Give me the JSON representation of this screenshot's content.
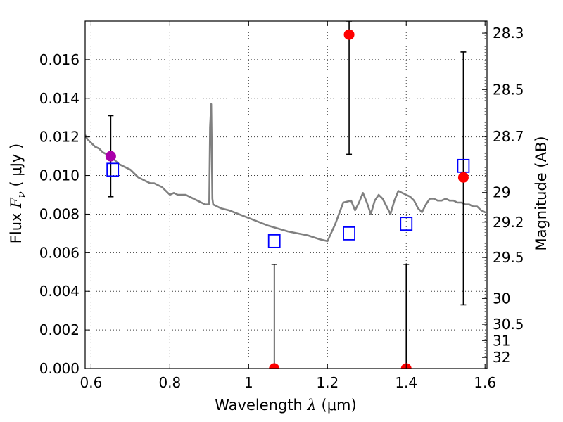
{
  "chart_data": {
    "type": "scatter",
    "x_axis": {
      "label_prefix": "Wavelength  ",
      "label_symbol": "λ",
      "label_unit": " (μm)",
      "range": [
        0.585,
        1.605
      ],
      "ticks": [
        0.6,
        0.8,
        1.0,
        1.2,
        1.4,
        1.6
      ],
      "tick_labels": [
        "0.6",
        "0.8",
        "1",
        "1.2",
        "1.4",
        "1.6"
      ]
    },
    "y_axis": {
      "label_prefix": "Flux  ",
      "label_symbol": "F",
      "label_subscript": "ν",
      "label_unit": "  ( μJy )",
      "range": [
        0.0,
        0.018
      ],
      "ticks": [
        0.0,
        0.002,
        0.004,
        0.006,
        0.008,
        0.01,
        0.012,
        0.014,
        0.016
      ],
      "tick_labels": [
        "0.000",
        "0.002",
        "0.004",
        "0.006",
        "0.008",
        "0.010",
        "0.012",
        "0.014",
        "0.016"
      ]
    },
    "y2_axis": {
      "label": "Magnitude (AB)",
      "ticks": [
        28.3,
        28.5,
        28.7,
        29,
        29.2,
        29.5,
        30,
        30.5,
        31,
        32
      ],
      "tick_labels": [
        "28.3",
        "28.5",
        "28.7",
        "29",
        "29.2",
        "29.5",
        "30",
        "30.5",
        "31",
        "32"
      ]
    },
    "grid": true,
    "series": [
      {
        "kind": "line",
        "color": "#808080",
        "x": [
          0.585,
          0.59,
          0.6,
          0.61,
          0.62,
          0.63,
          0.64,
          0.65,
          0.66,
          0.67,
          0.68,
          0.69,
          0.7,
          0.71,
          0.72,
          0.73,
          0.74,
          0.75,
          0.76,
          0.77,
          0.78,
          0.79,
          0.8,
          0.81,
          0.82,
          0.83,
          0.84,
          0.85,
          0.86,
          0.87,
          0.88,
          0.89,
          0.9,
          0.902,
          0.905,
          0.908,
          0.91,
          0.92,
          0.93,
          0.95,
          1.0,
          1.05,
          1.1,
          1.15,
          1.18,
          1.2,
          1.22,
          1.24,
          1.26,
          1.27,
          1.28,
          1.29,
          1.3,
          1.31,
          1.32,
          1.33,
          1.34,
          1.35,
          1.36,
          1.37,
          1.38,
          1.39,
          1.4,
          1.41,
          1.42,
          1.43,
          1.44,
          1.45,
          1.46,
          1.47,
          1.48,
          1.49,
          1.5,
          1.51,
          1.52,
          1.53,
          1.54,
          1.55,
          1.56,
          1.57,
          1.58,
          1.59,
          1.6
        ],
        "y": [
          0.0121,
          0.0119,
          0.0117,
          0.0115,
          0.0114,
          0.0112,
          0.0111,
          0.011,
          0.0108,
          0.0106,
          0.0105,
          0.0104,
          0.0103,
          0.0101,
          0.0099,
          0.0098,
          0.0097,
          0.0096,
          0.0096,
          0.0095,
          0.0094,
          0.0092,
          0.009,
          0.0091,
          0.009,
          0.009,
          0.009,
          0.0089,
          0.0088,
          0.0087,
          0.0086,
          0.0085,
          0.0085,
          0.0125,
          0.0137,
          0.0088,
          0.0085,
          0.0084,
          0.0083,
          0.0082,
          0.0078,
          0.0074,
          0.0071,
          0.0069,
          0.0067,
          0.0066,
          0.0075,
          0.0086,
          0.0087,
          0.0082,
          0.0086,
          0.0091,
          0.0086,
          0.008,
          0.0087,
          0.009,
          0.0088,
          0.0084,
          0.008,
          0.0087,
          0.0092,
          0.0091,
          0.009,
          0.0089,
          0.0087,
          0.0083,
          0.0081,
          0.0085,
          0.0088,
          0.0088,
          0.0087,
          0.0087,
          0.0088,
          0.0087,
          0.0087,
          0.0086,
          0.0086,
          0.0085,
          0.0085,
          0.0084,
          0.0084,
          0.0082,
          0.0081
        ]
      },
      {
        "kind": "squares",
        "color": "#0000ff",
        "x": [
          0.655,
          1.065,
          1.255,
          1.4,
          1.545
        ],
        "y": [
          0.0103,
          0.0066,
          0.007,
          0.0075,
          0.0105
        ]
      },
      {
        "kind": "circles",
        "color": "#ff0000",
        "x": [
          1.255,
          1.545,
          1.065,
          1.4
        ],
        "y": [
          0.0173,
          0.0099,
          0.0,
          0.0
        ]
      },
      {
        "kind": "circles",
        "color": "#aa00aa",
        "x": [
          0.65
        ],
        "y": [
          0.011
        ]
      }
    ],
    "error_bars": [
      {
        "x": 0.65,
        "low": 0.0089,
        "high": 0.0131
      },
      {
        "x": 1.065,
        "low": 0.0,
        "high": 0.0054
      },
      {
        "x": 1.255,
        "low": 0.0111,
        "high": 0.018
      },
      {
        "x": 1.4,
        "low": 0.0,
        "high": 0.0054
      },
      {
        "x": 1.545,
        "low": 0.0033,
        "high": 0.0164
      }
    ]
  }
}
